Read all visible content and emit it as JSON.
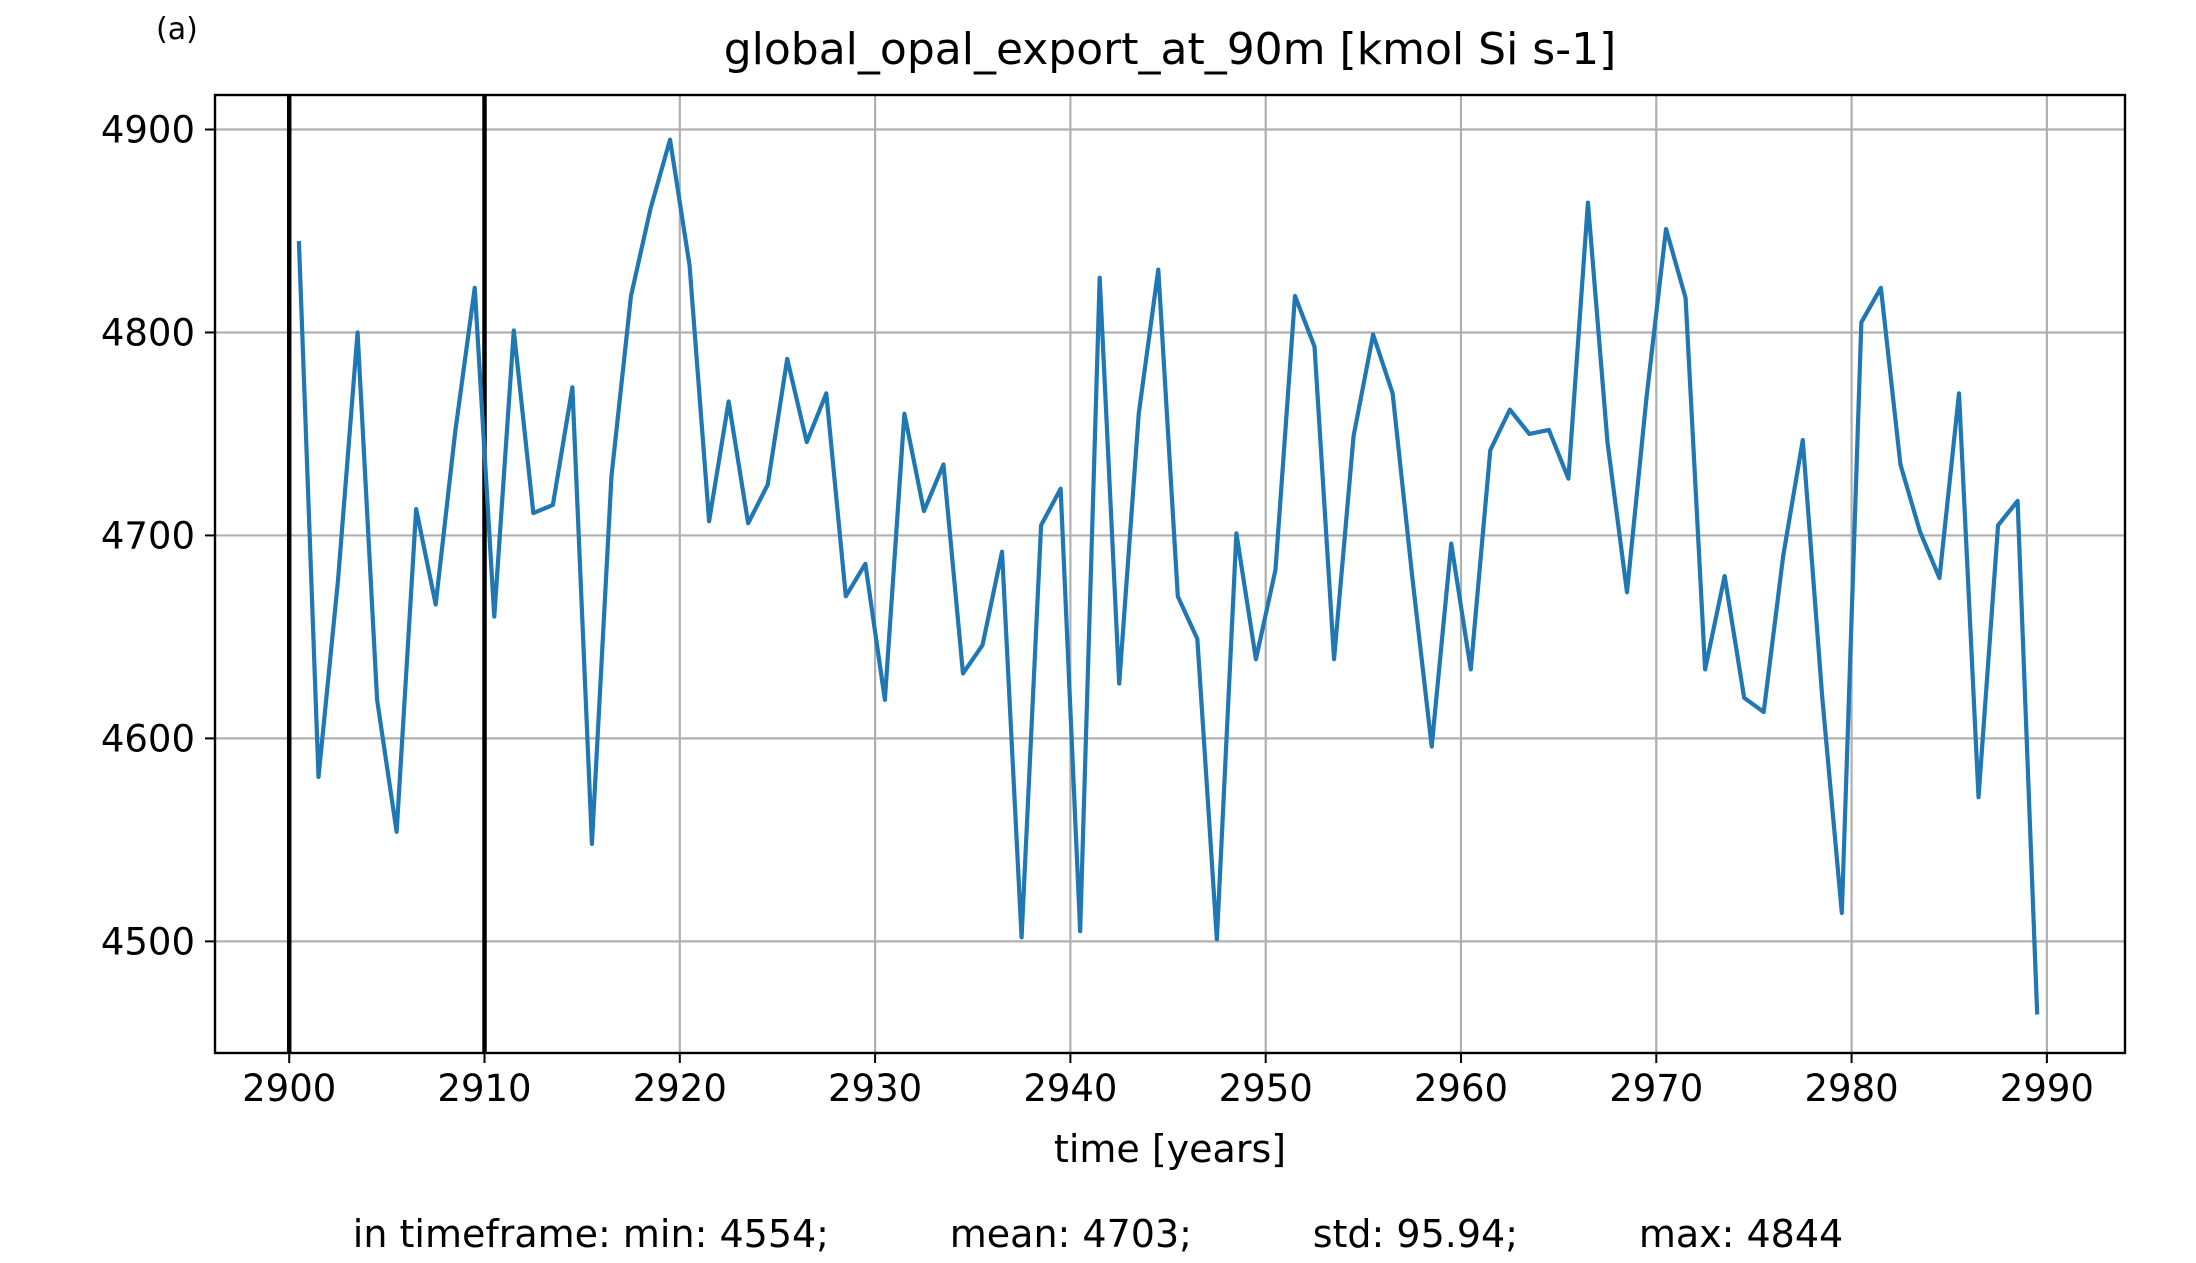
{
  "panel_label": "(a)",
  "chart_data": {
    "type": "line",
    "title": "global_opal_export_at_90m [kmol Si s-1]",
    "xlabel": "time [years]",
    "ylabel": "",
    "xlim": [
      2896.2,
      2994.0
    ],
    "ylim": [
      4445,
      4917
    ],
    "x_ticks": [
      2900,
      2910,
      2920,
      2930,
      2940,
      2950,
      2960,
      2970,
      2980,
      2990
    ],
    "y_ticks": [
      4500,
      4600,
      4700,
      4800,
      4900
    ],
    "grid": true,
    "vertical_markers": [
      2900,
      2910
    ],
    "series": [
      {
        "color": "#1f77b4",
        "x": [
          2900.5,
          2901.5,
          2902.5,
          2903.5,
          2904.5,
          2905.5,
          2906.5,
          2907.5,
          2908.5,
          2909.5,
          2910.5,
          2911.5,
          2912.5,
          2913.5,
          2914.5,
          2915.5,
          2916.5,
          2917.5,
          2918.5,
          2919.5,
          2920.5,
          2921.5,
          2922.5,
          2923.5,
          2924.5,
          2925.5,
          2926.5,
          2927.5,
          2928.5,
          2929.5,
          2930.5,
          2931.5,
          2932.5,
          2933.5,
          2934.5,
          2935.5,
          2936.5,
          2937.5,
          2938.5,
          2939.5,
          2940.5,
          2941.5,
          2942.5,
          2943.5,
          2944.5,
          2945.5,
          2946.5,
          2947.5,
          2948.5,
          2949.5,
          2950.5,
          2951.5,
          2952.5,
          2953.5,
          2954.5,
          2955.5,
          2956.5,
          2957.5,
          2958.5,
          2959.5,
          2960.5,
          2961.5,
          2962.5,
          2963.5,
          2964.5,
          2965.5,
          2966.5,
          2967.5,
          2968.5,
          2969.5,
          2970.5,
          2971.5,
          2972.5,
          2973.5,
          2974.5,
          2975.5,
          2976.5,
          2977.5,
          2978.5,
          2979.5,
          2980.5,
          2981.5,
          2982.5,
          2983.5,
          2984.5,
          2985.5,
          2986.5,
          2987.5,
          2988.5,
          2989.5
        ],
        "values": [
          4844,
          4581,
          4678,
          4800,
          4619,
          4554,
          4713,
          4666,
          4751,
          4822,
          4660,
          4801,
          4711,
          4715,
          4773,
          4548,
          4729,
          4818,
          4861,
          4895,
          4833,
          4707,
          4766,
          4706,
          4725,
          4787,
          4746,
          4770,
          4670,
          4686,
          4619,
          4760,
          4712,
          4735,
          4632,
          4646,
          4692,
          4502,
          4705,
          4723,
          4505,
          4827,
          4627,
          4760,
          4831,
          4670,
          4649,
          4501,
          4701,
          4639,
          4683,
          4818,
          4793,
          4639,
          4749,
          4799,
          4770,
          4680,
          4596,
          4696,
          4634,
          4742,
          4762,
          4750,
          4752,
          4728,
          4864,
          4746,
          4672,
          4768,
          4851,
          4817,
          4634,
          4680,
          4620,
          4613,
          4690,
          4747,
          4620,
          4514,
          4805,
          4822,
          4735,
          4702,
          4679,
          4770,
          4571,
          4705,
          4717,
          4465
        ]
      }
    ]
  },
  "stats": {
    "min": "in timeframe: min: 4554;",
    "mean": "mean: 4703;",
    "std": "std: 95.94;",
    "max": "max: 4844"
  }
}
